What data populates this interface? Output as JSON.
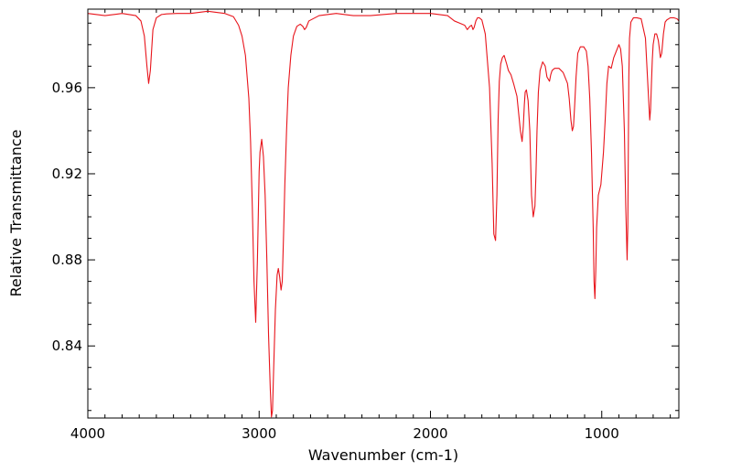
{
  "chart_data": {
    "type": "line",
    "title": "",
    "xlabel": "Wavenumber (cm-1)",
    "ylabel": "Relative Transmittance",
    "xlim": [
      4000,
      550
    ],
    "ylim": [
      0.8065,
      0.9965
    ],
    "x_reversed": true,
    "grid": false,
    "legend": "none",
    "xticks": [
      4000,
      3000,
      2000,
      1000
    ],
    "xtick_labels": [
      "4000",
      "3000",
      "2000",
      "1000"
    ],
    "yticks": [
      0.84,
      0.88,
      0.92,
      0.96
    ],
    "ytick_labels": [
      "0.84",
      "0.88",
      "0.92",
      "0.96"
    ],
    "series": [
      {
        "name": "",
        "color": "#e8141b",
        "x": [
          4000,
          3900,
          3800,
          3720,
          3690,
          3670,
          3655,
          3645,
          3635,
          3620,
          3600,
          3570,
          3540,
          3480,
          3400,
          3300,
          3200,
          3150,
          3120,
          3100,
          3080,
          3060,
          3050,
          3040,
          3030,
          3020,
          3010,
          3000,
          2995,
          2985,
          2975,
          2965,
          2955,
          2945,
          2935,
          2928,
          2922,
          2915,
          2905,
          2895,
          2888,
          2880,
          2872,
          2865,
          2858,
          2850,
          2840,
          2830,
          2815,
          2800,
          2780,
          2760,
          2745,
          2735,
          2725,
          2710,
          2650,
          2550,
          2450,
          2350,
          2200,
          2100,
          2000,
          1900,
          1860,
          1830,
          1800,
          1785,
          1770,
          1760,
          1752,
          1745,
          1735,
          1725,
          1715,
          1700,
          1680,
          1655,
          1640,
          1630,
          1620,
          1612,
          1605,
          1598,
          1590,
          1580,
          1570,
          1555,
          1545,
          1530,
          1515,
          1495,
          1475,
          1465,
          1458,
          1452,
          1447,
          1440,
          1430,
          1420,
          1410,
          1400,
          1390,
          1384,
          1378,
          1370,
          1360,
          1345,
          1330,
          1320,
          1305,
          1298,
          1290,
          1275,
          1250,
          1225,
          1200,
          1190,
          1180,
          1172,
          1165,
          1158,
          1150,
          1140,
          1125,
          1105,
          1090,
          1080,
          1070,
          1060,
          1050,
          1045,
          1040,
          1035,
          1030,
          1020,
          1005,
          990,
          980,
          970,
          960,
          945,
          930,
          915,
          900,
          890,
          880,
          868,
          860,
          852,
          848,
          845,
          842,
          838,
          830,
          815,
          795,
          770,
          745,
          730,
          720,
          715,
          710,
          705,
          700,
          690,
          680,
          670,
          662,
          658,
          650,
          640,
          630,
          620,
          600,
          580,
          560,
          550
        ],
        "values": [
          0.9945,
          0.9935,
          0.9945,
          0.9935,
          0.991,
          0.984,
          0.97,
          0.962,
          0.968,
          0.987,
          0.9925,
          0.994,
          0.9943,
          0.9945,
          0.9945,
          0.9955,
          0.9945,
          0.993,
          0.989,
          0.984,
          0.975,
          0.955,
          0.935,
          0.905,
          0.87,
          0.851,
          0.88,
          0.921,
          0.93,
          0.936,
          0.928,
          0.91,
          0.88,
          0.845,
          0.82,
          0.807,
          0.81,
          0.83,
          0.857,
          0.873,
          0.876,
          0.872,
          0.866,
          0.87,
          0.89,
          0.915,
          0.94,
          0.96,
          0.975,
          0.984,
          0.9885,
          0.9895,
          0.9885,
          0.987,
          0.988,
          0.991,
          0.9935,
          0.9945,
          0.9935,
          0.9935,
          0.9945,
          0.9945,
          0.9945,
          0.9935,
          0.991,
          0.99,
          0.989,
          0.987,
          0.9885,
          0.989,
          0.987,
          0.988,
          0.991,
          0.9925,
          0.9925,
          0.9915,
          0.985,
          0.96,
          0.925,
          0.892,
          0.889,
          0.91,
          0.945,
          0.963,
          0.971,
          0.974,
          0.975,
          0.971,
          0.968,
          0.966,
          0.962,
          0.956,
          0.94,
          0.935,
          0.942,
          0.952,
          0.958,
          0.959,
          0.954,
          0.94,
          0.91,
          0.9,
          0.905,
          0.92,
          0.94,
          0.958,
          0.968,
          0.972,
          0.97,
          0.965,
          0.963,
          0.966,
          0.968,
          0.969,
          0.969,
          0.967,
          0.962,
          0.955,
          0.945,
          0.94,
          0.942,
          0.952,
          0.965,
          0.976,
          0.979,
          0.979,
          0.977,
          0.97,
          0.955,
          0.93,
          0.895,
          0.87,
          0.862,
          0.875,
          0.895,
          0.91,
          0.915,
          0.93,
          0.945,
          0.962,
          0.97,
          0.969,
          0.974,
          0.977,
          0.98,
          0.978,
          0.97,
          0.94,
          0.905,
          0.88,
          0.895,
          0.93,
          0.965,
          0.983,
          0.9905,
          0.9925,
          0.9925,
          0.992,
          0.983,
          0.96,
          0.945,
          0.95,
          0.962,
          0.973,
          0.98,
          0.985,
          0.985,
          0.982,
          0.977,
          0.974,
          0.976,
          0.985,
          0.9905,
          0.9915,
          0.9925,
          0.9925,
          0.992,
          0.991
        ]
      }
    ]
  }
}
